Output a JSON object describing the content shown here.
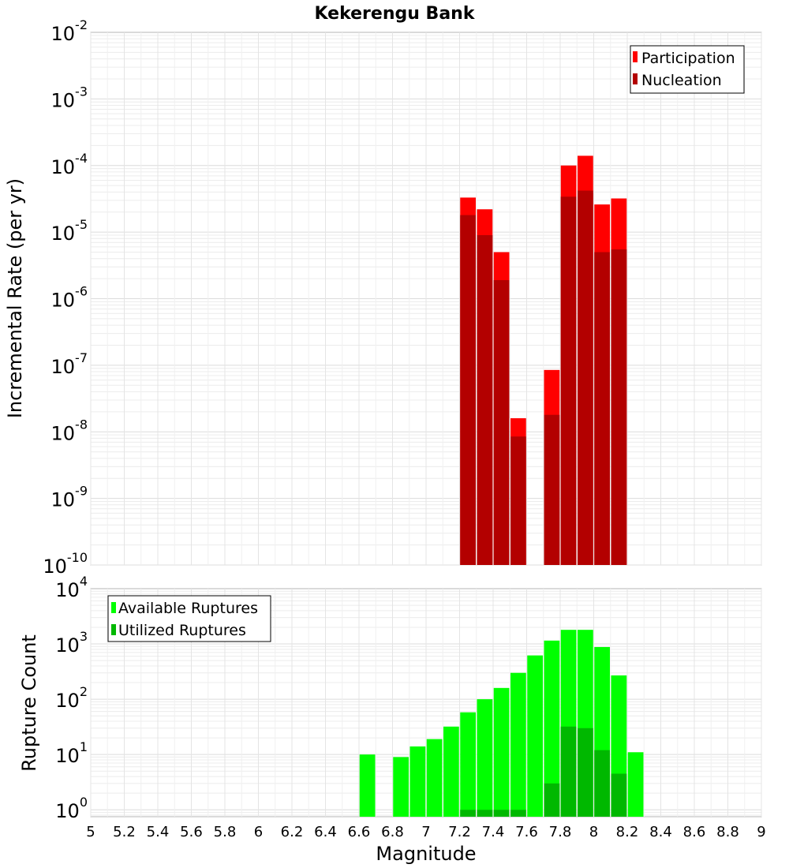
{
  "title": "Kekerengu Bank",
  "chart_data": [
    {
      "type": "bar",
      "title": "Kekerengu Bank",
      "xlabel": "",
      "ylabel": "Incremental Rate (per yr)",
      "y_scale": "log",
      "ylim": [
        1e-10,
        0.01
      ],
      "xlim": [
        5,
        9
      ],
      "grid": true,
      "legend": "top-right",
      "series": [
        {
          "name": "Participation",
          "color": "#ff0000",
          "x": [
            7.25,
            7.35,
            7.45,
            7.55,
            7.75,
            7.85,
            7.95,
            8.05,
            8.15
          ],
          "values": [
            3.3e-05,
            2.2e-05,
            5e-06,
            1.6e-08,
            8.5e-08,
            0.0001,
            0.00014,
            2.6e-05,
            3.2e-05
          ]
        },
        {
          "name": "Nucleation",
          "color": "#b30000",
          "x": [
            7.25,
            7.35,
            7.45,
            7.55,
            7.75,
            7.85,
            7.95,
            8.05,
            8.15
          ],
          "values": [
            1.8e-05,
            9e-06,
            1.9e-06,
            8.5e-09,
            1.8e-08,
            3.4e-05,
            4.2e-05,
            5e-06,
            5.5e-06
          ]
        }
      ],
      "yticks": [
        {
          "base": "10",
          "exp": "-10"
        },
        {
          "base": "10",
          "exp": "-9"
        },
        {
          "base": "10",
          "exp": "-8"
        },
        {
          "base": "10",
          "exp": "-7"
        },
        {
          "base": "10",
          "exp": "-6"
        },
        {
          "base": "10",
          "exp": "-5"
        },
        {
          "base": "10",
          "exp": "-4"
        },
        {
          "base": "10",
          "exp": "-3"
        },
        {
          "base": "10",
          "exp": "-2"
        }
      ]
    },
    {
      "type": "bar",
      "title": "",
      "xlabel": "Magnitude",
      "ylabel": "Rupture Count",
      "y_scale": "log",
      "ylim": [
        0.75,
        10000
      ],
      "xlim": [
        5,
        9
      ],
      "grid": true,
      "legend": "top-left",
      "series": [
        {
          "name": "Available Ruptures",
          "color": "#00ff00",
          "x": [
            6.65,
            6.85,
            6.95,
            7.05,
            7.15,
            7.25,
            7.35,
            7.45,
            7.55,
            7.65,
            7.75,
            7.85,
            7.95,
            8.05,
            8.15,
            8.25
          ],
          "values": [
            10,
            9,
            14,
            19,
            32,
            58,
            100,
            160,
            300,
            620,
            1150,
            1800,
            1800,
            880,
            270,
            11
          ]
        },
        {
          "name": "Utilized Ruptures",
          "color": "#00b800",
          "x": [
            7.25,
            7.35,
            7.45,
            7.55,
            7.75,
            7.85,
            7.95,
            8.05,
            8.15
          ],
          "values": [
            1,
            1,
            1,
            1,
            3,
            32,
            30,
            12,
            4.5
          ]
        }
      ],
      "yticks": [
        {
          "base": "10",
          "exp": "0"
        },
        {
          "base": "10",
          "exp": "1"
        },
        {
          "base": "10",
          "exp": "2"
        },
        {
          "base": "10",
          "exp": "3"
        },
        {
          "base": "10",
          "exp": "4"
        }
      ],
      "xticks": [
        "5",
        "5.2",
        "5.4",
        "5.6",
        "5.8",
        "6",
        "6.2",
        "6.4",
        "6.6",
        "6.8",
        "7",
        "7.2",
        "7.4",
        "7.6",
        "7.8",
        "8",
        "8.2",
        "8.4",
        "8.6",
        "8.8",
        "9"
      ]
    }
  ]
}
